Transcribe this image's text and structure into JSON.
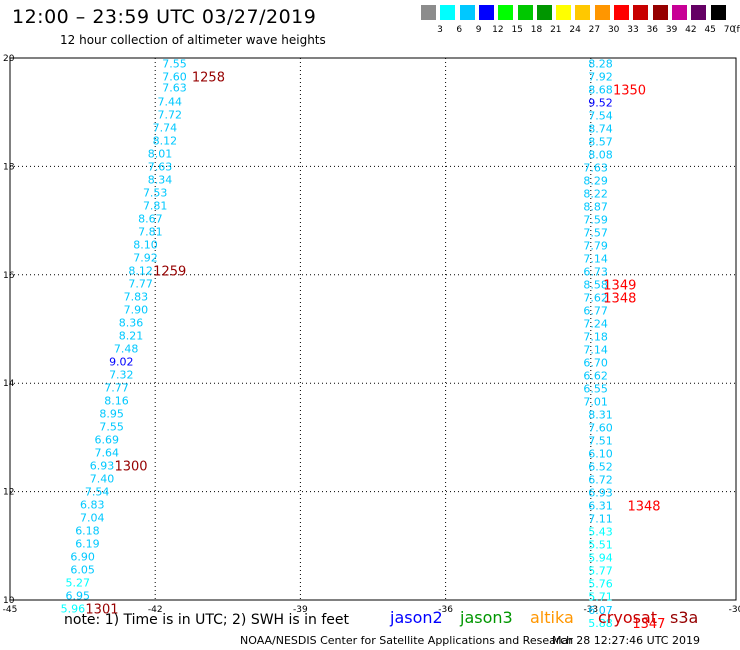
{
  "header": {
    "title": "12:00 – 23:59 UTC 03/27/2019",
    "subtitle": "12 hour collection of altimeter wave heights"
  },
  "color_scale": {
    "labels": [
      "3",
      "6",
      "9",
      "12",
      "15",
      "18",
      "21",
      "24",
      "27",
      "30",
      "33",
      "36",
      "39",
      "42",
      "45",
      "70"
    ],
    "unit": "(ft)",
    "colors": [
      "#8c8c8c",
      "#00ffff",
      "#00c8ff",
      "#0000ff",
      "#00ff00",
      "#00c800",
      "#009600",
      "#ffff00",
      "#ffc800",
      "#ff9600",
      "#ff0000",
      "#c80000",
      "#960000",
      "#c80096",
      "#640064",
      "#000000"
    ]
  },
  "footer": {
    "note": "note:  1) Time is in UTC; 2) SWH is in feet",
    "legend": [
      {
        "name": "jason2",
        "color": "#0000ff"
      },
      {
        "name": "jason3",
        "color": "#009600"
      },
      {
        "name": "altika",
        "color": "#ff9600"
      },
      {
        "name": "cryosat",
        "color": "#c80000"
      },
      {
        "name": "s3a",
        "color": "#960000"
      }
    ],
    "credit": "NOAA/NESDIS Center for Satellite Applications and Research",
    "timestamp": "Mar 28 12:27:46 UTC 2019"
  },
  "chart_data": {
    "type": "scatter",
    "title": "12:00 – 23:59 UTC 03/27/2019",
    "subtitle": "12 hour collection of altimeter wave heights",
    "xlabel": "",
    "ylabel": "",
    "xlim": [
      -45,
      -30
    ],
    "ylim": [
      10,
      20
    ],
    "x_ticks": [
      "-45",
      "-42",
      "-39",
      "-36",
      "-33",
      "-30"
    ],
    "y_ticks": [
      "10",
      "12",
      "14",
      "16",
      "18",
      "20"
    ],
    "grid": true,
    "unit": "ft",
    "series": [
      {
        "name": "",
        "color": "#00c8ff",
        "points": [
          {
            "x": -41.6,
            "y": 19.9,
            "v": "7.55"
          },
          {
            "x": -41.6,
            "y": 19.66,
            "v": "7.60"
          },
          {
            "x": -41.6,
            "y": 19.46,
            "v": "7.63"
          },
          {
            "x": -41.7,
            "y": 19.2,
            "v": "7.44"
          },
          {
            "x": -41.7,
            "y": 18.96,
            "v": "7.72"
          },
          {
            "x": -41.8,
            "y": 18.72,
            "v": "7.74"
          },
          {
            "x": -41.8,
            "y": 18.48,
            "v": "8.12"
          },
          {
            "x": -41.9,
            "y": 18.24,
            "v": "8.01"
          },
          {
            "x": -41.9,
            "y": 18.0,
            "v": "7.63"
          },
          {
            "x": -41.9,
            "y": 17.76,
            "v": "8.34"
          },
          {
            "x": -42.0,
            "y": 17.52,
            "v": "7.53"
          },
          {
            "x": -42.0,
            "y": 17.28,
            "v": "7.81"
          },
          {
            "x": -42.1,
            "y": 17.04,
            "v": "8.67"
          },
          {
            "x": -42.1,
            "y": 16.8,
            "v": "7.81"
          },
          {
            "x": -42.2,
            "y": 16.56,
            "v": "8.10"
          },
          {
            "x": -42.2,
            "y": 16.32,
            "v": "7.92"
          },
          {
            "x": -42.3,
            "y": 16.08,
            "v": "8.12"
          },
          {
            "x": -42.3,
            "y": 15.84,
            "v": "7.77"
          },
          {
            "x": -42.4,
            "y": 15.6,
            "v": "7.83"
          },
          {
            "x": -42.4,
            "y": 15.36,
            "v": "7.90"
          },
          {
            "x": -42.5,
            "y": 15.12,
            "v": "8.36"
          },
          {
            "x": -42.5,
            "y": 14.88,
            "v": "8.21"
          },
          {
            "x": -42.6,
            "y": 14.64,
            "v": "7.48"
          },
          {
            "x": -42.7,
            "y": 14.4,
            "v": "9.02"
          },
          {
            "x": -42.7,
            "y": 14.16,
            "v": "7.32"
          },
          {
            "x": -42.8,
            "y": 13.92,
            "v": "7.77"
          },
          {
            "x": -42.8,
            "y": 13.68,
            "v": "8.16"
          },
          {
            "x": -42.9,
            "y": 13.44,
            "v": "8.95"
          },
          {
            "x": -42.9,
            "y": 13.2,
            "v": "7.55"
          },
          {
            "x": -43.0,
            "y": 12.96,
            "v": "6.69"
          },
          {
            "x": -43.0,
            "y": 12.72,
            "v": "7.64"
          },
          {
            "x": -43.1,
            "y": 12.48,
            "v": "6.93"
          },
          {
            "x": -43.1,
            "y": 12.24,
            "v": "7.40"
          },
          {
            "x": -43.2,
            "y": 12.0,
            "v": "7.54"
          },
          {
            "x": -43.3,
            "y": 11.76,
            "v": "6.83"
          },
          {
            "x": -43.3,
            "y": 11.52,
            "v": "7.04"
          },
          {
            "x": -43.4,
            "y": 11.28,
            "v": "6.18"
          },
          {
            "x": -43.4,
            "y": 11.04,
            "v": "6.19"
          },
          {
            "x": -43.5,
            "y": 10.8,
            "v": "6.90"
          },
          {
            "x": -43.5,
            "y": 10.56,
            "v": "6.05"
          },
          {
            "x": -43.6,
            "y": 10.32,
            "v": "5.27"
          },
          {
            "x": -43.6,
            "y": 10.08,
            "v": "6.95"
          },
          {
            "x": -43.7,
            "y": 9.84,
            "v": "5.96"
          }
        ],
        "pass_labels": [
          {
            "x": -40.9,
            "y": 19.66,
            "text": "1258"
          },
          {
            "x": -41.7,
            "y": 16.08,
            "text": "1259"
          },
          {
            "x": -42.5,
            "y": 12.48,
            "text": "1300"
          },
          {
            "x": -43.1,
            "y": 9.84,
            "text": "1301"
          }
        ]
      },
      {
        "name": "",
        "color": "#00c8ff",
        "points": [
          {
            "x": -32.8,
            "y": 19.9,
            "v": "8.28"
          },
          {
            "x": -32.8,
            "y": 19.66,
            "v": "7.92"
          },
          {
            "x": -32.8,
            "y": 19.42,
            "v": "8.68"
          },
          {
            "x": -32.8,
            "y": 19.18,
            "v": "9.52"
          },
          {
            "x": -32.8,
            "y": 18.94,
            "v": "7.54"
          },
          {
            "x": -32.8,
            "y": 18.7,
            "v": "8.74"
          },
          {
            "x": -32.8,
            "y": 18.46,
            "v": "8.57"
          },
          {
            "x": -32.8,
            "y": 18.22,
            "v": "8.08"
          },
          {
            "x": -32.9,
            "y": 17.98,
            "v": "7.63"
          },
          {
            "x": -32.9,
            "y": 17.74,
            "v": "8.29"
          },
          {
            "x": -32.9,
            "y": 17.5,
            "v": "8.22"
          },
          {
            "x": -32.9,
            "y": 17.26,
            "v": "8.87"
          },
          {
            "x": -32.9,
            "y": 17.02,
            "v": "7.59"
          },
          {
            "x": -32.9,
            "y": 16.78,
            "v": "7.57"
          },
          {
            "x": -32.9,
            "y": 16.54,
            "v": "7.79"
          },
          {
            "x": -32.9,
            "y": 16.3,
            "v": "7.14"
          },
          {
            "x": -32.9,
            "y": 16.06,
            "v": "6.73"
          },
          {
            "x": -32.9,
            "y": 15.82,
            "v": "8.58"
          },
          {
            "x": -32.9,
            "y": 15.58,
            "v": "7.62"
          },
          {
            "x": -32.9,
            "y": 15.34,
            "v": "6.77"
          },
          {
            "x": -32.9,
            "y": 15.1,
            "v": "7.24"
          },
          {
            "x": -32.9,
            "y": 14.86,
            "v": "7.18"
          },
          {
            "x": -32.9,
            "y": 14.62,
            "v": "7.14"
          },
          {
            "x": -32.9,
            "y": 14.38,
            "v": "6.70"
          },
          {
            "x": -32.9,
            "y": 14.14,
            "v": "6.62"
          },
          {
            "x": -32.9,
            "y": 13.9,
            "v": "6.55"
          },
          {
            "x": -32.9,
            "y": 13.66,
            "v": "7.01"
          },
          {
            "x": -32.8,
            "y": 13.42,
            "v": "8.31"
          },
          {
            "x": -32.8,
            "y": 13.18,
            "v": "7.60"
          },
          {
            "x": -32.8,
            "y": 12.94,
            "v": "7.51"
          },
          {
            "x": -32.8,
            "y": 12.7,
            "v": "6.10"
          },
          {
            "x": -32.8,
            "y": 12.46,
            "v": "6.52"
          },
          {
            "x": -32.8,
            "y": 12.22,
            "v": "6.72"
          },
          {
            "x": -32.8,
            "y": 11.98,
            "v": "6.93"
          },
          {
            "x": -32.8,
            "y": 11.74,
            "v": "6.31"
          },
          {
            "x": -32.8,
            "y": 11.5,
            "v": "7.11"
          },
          {
            "x": -32.8,
            "y": 11.26,
            "v": "5.43"
          },
          {
            "x": -32.8,
            "y": 11.02,
            "v": "5.51"
          },
          {
            "x": -32.8,
            "y": 10.78,
            "v": "5.94"
          },
          {
            "x": -32.8,
            "y": 10.54,
            "v": "5.77"
          },
          {
            "x": -32.8,
            "y": 10.3,
            "v": "5.76"
          },
          {
            "x": -32.8,
            "y": 10.06,
            "v": "5.71"
          },
          {
            "x": -32.8,
            "y": 9.82,
            "v": "6.07"
          },
          {
            "x": -32.8,
            "y": 9.58,
            "v": "5.88"
          }
        ],
        "pass_labels": [
          {
            "x": -32.2,
            "y": 19.42,
            "text": "1350"
          },
          {
            "x": -32.4,
            "y": 15.82,
            "text": "1349"
          },
          {
            "x": -32.4,
            "y": 15.58,
            "text": "1348"
          },
          {
            "x": -31.9,
            "y": 11.74,
            "text": "1348"
          },
          {
            "x": -31.8,
            "y": 9.58,
            "text": "1347"
          }
        ]
      }
    ]
  }
}
